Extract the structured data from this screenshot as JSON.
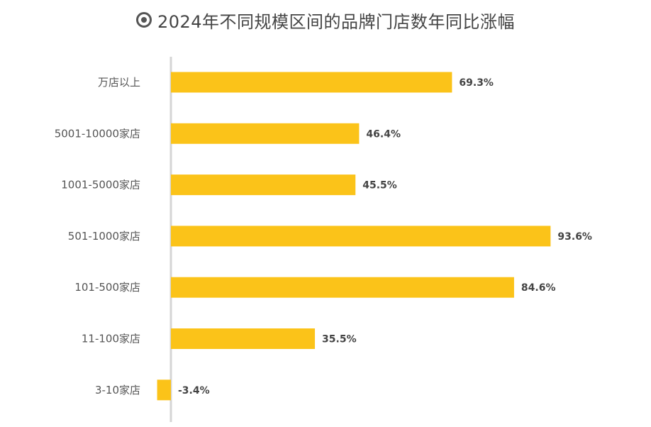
{
  "title": "2024年不同规模区间的品牌门店数年同比涨幅",
  "icon": "target-icon",
  "colors": {
    "bar": "#FBC319",
    "axis": "#D5D5D5",
    "text": "#555555"
  },
  "chart_data": {
    "type": "bar",
    "orientation": "horizontal",
    "categories": [
      "万店以上",
      "5001-10000家店",
      "1001-5000家店",
      "501-1000家店",
      "101-500家店",
      "11-100家店",
      "3-10家店"
    ],
    "values": [
      69.3,
      46.4,
      45.5,
      93.6,
      84.6,
      35.5,
      -3.4
    ],
    "value_labels": [
      "69.3%",
      "46.4%",
      "45.5%",
      "93.6%",
      "84.6%",
      "35.5%",
      "-3.4%"
    ],
    "title": "2024年不同规模区间的品牌门店数年同比涨幅",
    "unit": "%",
    "grid": false,
    "legend": "none"
  }
}
